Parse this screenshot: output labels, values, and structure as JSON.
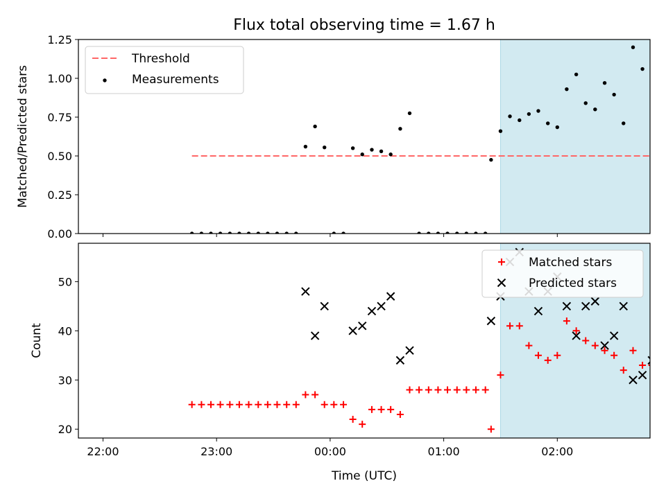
{
  "chart_data": {
    "title": "Flux total observing time = 1.67 h",
    "xlabel": "Time (UTC)",
    "x_ticks": [
      "22:00",
      "23:00",
      "00:00",
      "01:00",
      "02:00"
    ],
    "x_tick_hours": [
      22.0,
      23.0,
      24.0,
      25.0,
      26.0
    ],
    "x_range_hours": [
      21.7833,
      26.8167
    ],
    "shaded_region_hours": [
      25.5,
      27.1667
    ],
    "shade_color": "#add8e6",
    "charts": [
      {
        "type": "scatter",
        "ylabel": "Matched/Predicted stars",
        "ylim": [
          0,
          1.25
        ],
        "yticks": [
          "0.00",
          "0.25",
          "0.50",
          "0.75",
          "1.00",
          "1.25"
        ],
        "ytick_values": [
          0,
          0.25,
          0.5,
          0.75,
          1.0,
          1.25
        ],
        "threshold": {
          "name": "Threshold",
          "y": 0.5,
          "x_range_hours": [
            22.783,
            27.383
          ],
          "color": "#ff6666"
        },
        "series": [
          {
            "name": "Measurements",
            "color": "#000000",
            "marker": "dot",
            "points": [
              [
                22.783,
                0
              ],
              [
                22.867,
                0
              ],
              [
                22.95,
                0
              ],
              [
                23.033,
                0
              ],
              [
                23.117,
                0
              ],
              [
                23.2,
                0
              ],
              [
                23.283,
                0
              ],
              [
                23.367,
                0
              ],
              [
                23.45,
                0
              ],
              [
                23.533,
                0
              ],
              [
                23.617,
                0
              ],
              [
                23.7,
                0
              ],
              [
                23.783,
                0.56
              ],
              [
                23.867,
                0.69
              ],
              [
                23.95,
                0.555
              ],
              [
                24.033,
                0
              ],
              [
                24.117,
                0
              ],
              [
                24.2,
                0.55
              ],
              [
                24.283,
                0.51
              ],
              [
                24.367,
                0.54
              ],
              [
                24.45,
                0.53
              ],
              [
                24.533,
                0.51
              ],
              [
                24.617,
                0.675
              ],
              [
                24.7,
                0.775
              ],
              [
                24.783,
                0
              ],
              [
                24.867,
                0
              ],
              [
                24.95,
                0
              ],
              [
                25.033,
                0
              ],
              [
                25.117,
                0
              ],
              [
                25.2,
                0
              ],
              [
                25.283,
                0
              ],
              [
                25.367,
                0
              ],
              [
                25.417,
                0.475
              ],
              [
                25.5,
                0.66
              ],
              [
                25.583,
                0.755
              ],
              [
                25.667,
                0.73
              ],
              [
                25.75,
                0.77
              ],
              [
                25.833,
                0.79
              ],
              [
                25.917,
                0.71
              ],
              [
                26.0,
                0.685
              ],
              [
                26.083,
                0.93
              ],
              [
                26.167,
                1.025
              ],
              [
                26.25,
                0.84
              ],
              [
                26.333,
                0.8
              ],
              [
                26.417,
                0.97
              ],
              [
                26.5,
                0.895
              ],
              [
                26.583,
                0.71
              ],
              [
                26.667,
                1.2
              ],
              [
                26.75,
                1.06
              ],
              [
                26.833,
                0.965
              ],
              [
                26.917,
                0.85
              ],
              [
                27.0,
                0.835
              ],
              [
                27.083,
                0.775
              ],
              [
                27.167,
                0.805
              ],
              [
                27.25,
                0
              ],
              [
                27.333,
                0
              ]
            ]
          }
        ]
      },
      {
        "type": "scatter",
        "ylabel": "Count",
        "ylim": [
          18.2,
          57.8
        ],
        "yticks": [
          "20",
          "30",
          "40",
          "50"
        ],
        "ytick_values": [
          20,
          30,
          40,
          50
        ],
        "series": [
          {
            "name": "Matched stars",
            "color": "#ff0000",
            "marker": "plus",
            "points": [
              [
                22.783,
                25
              ],
              [
                22.867,
                25
              ],
              [
                22.95,
                25
              ],
              [
                23.033,
                25
              ],
              [
                23.117,
                25
              ],
              [
                23.2,
                25
              ],
              [
                23.283,
                25
              ],
              [
                23.367,
                25
              ],
              [
                23.45,
                25
              ],
              [
                23.533,
                25
              ],
              [
                23.617,
                25
              ],
              [
                23.7,
                25
              ],
              [
                23.783,
                27
              ],
              [
                23.867,
                27
              ],
              [
                23.95,
                25
              ],
              [
                24.033,
                25
              ],
              [
                24.117,
                25
              ],
              [
                24.2,
                22
              ],
              [
                24.283,
                21
              ],
              [
                24.367,
                24
              ],
              [
                24.45,
                24
              ],
              [
                24.533,
                24
              ],
              [
                24.617,
                23
              ],
              [
                24.7,
                28
              ],
              [
                24.783,
                28
              ],
              [
                24.867,
                28
              ],
              [
                24.95,
                28
              ],
              [
                25.033,
                28
              ],
              [
                25.117,
                28
              ],
              [
                25.2,
                28
              ],
              [
                25.283,
                28
              ],
              [
                25.367,
                28
              ],
              [
                25.417,
                20
              ],
              [
                25.5,
                31
              ],
              [
                25.583,
                41
              ],
              [
                25.667,
                41
              ],
              [
                25.75,
                37
              ],
              [
                25.833,
                35
              ],
              [
                25.917,
                34
              ],
              [
                26.0,
                35
              ],
              [
                26.083,
                42
              ],
              [
                26.167,
                40
              ],
              [
                26.25,
                38
              ],
              [
                26.333,
                37
              ],
              [
                26.417,
                36
              ],
              [
                26.5,
                35
              ],
              [
                26.583,
                32
              ],
              [
                26.667,
                36
              ],
              [
                26.75,
                33
              ],
              [
                26.833,
                33
              ],
              [
                26.917,
                29
              ],
              [
                27.0,
                25
              ],
              [
                27.083,
                21
              ],
              [
                27.167,
                21
              ],
              [
                27.25,
                21
              ],
              [
                27.333,
                21
              ]
            ]
          },
          {
            "name": "Predicted stars",
            "color": "#000000",
            "marker": "x",
            "points": [
              [
                23.783,
                48
              ],
              [
                23.867,
                39
              ],
              [
                23.95,
                45
              ],
              [
                24.2,
                40
              ],
              [
                24.283,
                41
              ],
              [
                24.367,
                44
              ],
              [
                24.45,
                45
              ],
              [
                24.533,
                47
              ],
              [
                24.617,
                34
              ],
              [
                24.7,
                36
              ],
              [
                25.417,
                42
              ],
              [
                25.5,
                47
              ],
              [
                25.583,
                54
              ],
              [
                25.667,
                56
              ],
              [
                25.75,
                48
              ],
              [
                25.833,
                44
              ],
              [
                25.917,
                48
              ],
              [
                26.0,
                51
              ],
              [
                26.083,
                45
              ],
              [
                26.167,
                39
              ],
              [
                26.25,
                45
              ],
              [
                26.333,
                46
              ],
              [
                26.417,
                37
              ],
              [
                26.5,
                39
              ],
              [
                26.583,
                45
              ],
              [
                26.667,
                30
              ],
              [
                26.75,
                31
              ],
              [
                26.833,
                34
              ],
              [
                26.917,
                34
              ],
              [
                27.0,
                30
              ],
              [
                27.083,
                27
              ],
              [
                27.167,
                26
              ]
            ]
          }
        ]
      }
    ]
  }
}
